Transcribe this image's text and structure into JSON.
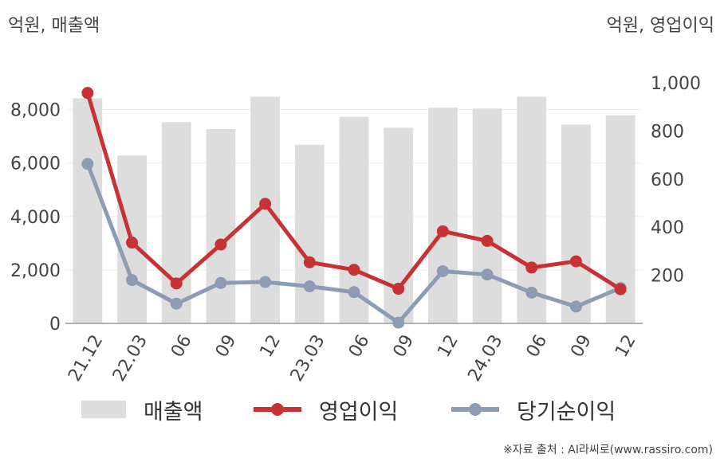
{
  "units": {
    "left": "억원, 매출액",
    "right": "억원, 영업이익"
  },
  "colors": {
    "revenue": "#dddddd",
    "operating": "#c73235",
    "net": "#8e9bb5",
    "axis": "#999999",
    "text": "#444444",
    "grid": "#eeeeee"
  },
  "chart_data": {
    "type": "bar+line",
    "categories": [
      "21.12",
      "22.03",
      "06",
      "09",
      "12",
      "23.03",
      "06",
      "09",
      "12",
      "24.03",
      "06",
      "09",
      "12"
    ],
    "series": [
      {
        "name": "매출액",
        "type": "bar",
        "axis": "left",
        "values": [
          8420,
          6280,
          7530,
          7270,
          8480,
          6680,
          7730,
          7320,
          8070,
          8040,
          8480,
          7440,
          7790
        ]
      },
      {
        "name": "영업이익",
        "type": "line",
        "axis": "right",
        "values": [
          958,
          336,
          166,
          328,
          497,
          254,
          223,
          144,
          383,
          343,
          232,
          258,
          142
        ]
      },
      {
        "name": "당기순이익",
        "type": "line",
        "axis": "right",
        "values": [
          663,
          180,
          82,
          168,
          172,
          154,
          130,
          3,
          217,
          203,
          128,
          70,
          147
        ]
      }
    ],
    "y_left": {
      "ticks": [
        "0",
        "2,000",
        "4,000",
        "6,000",
        "8,000"
      ],
      "values": [
        0,
        2000,
        4000,
        6000,
        8000
      ],
      "range": [
        0,
        9000
      ]
    },
    "y_right": {
      "ticks": [
        "200",
        "400",
        "600",
        "800",
        "1,000"
      ],
      "values": [
        200,
        400,
        600,
        800,
        1000
      ],
      "range": [
        0,
        1000
      ]
    },
    "grid": true,
    "legend": "bottom"
  },
  "source": "※자료 출처 : AI라씨로(www.rassiro.com)"
}
